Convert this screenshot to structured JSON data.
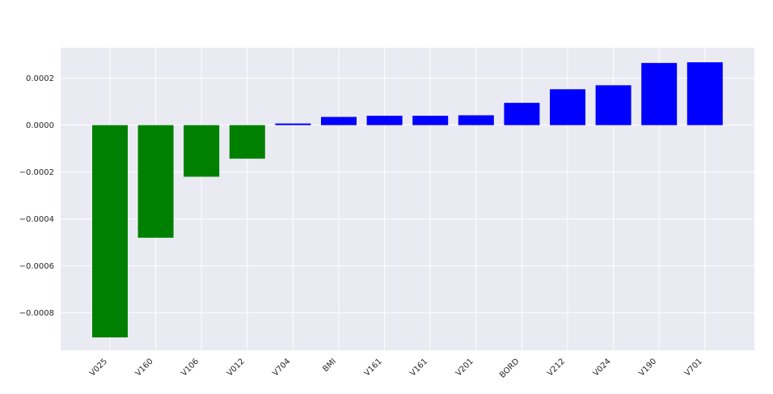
{
  "chart_data": {
    "type": "bar",
    "title": "",
    "xlabel": "",
    "ylabel": "",
    "categories": [
      "V025",
      "V160",
      "V106",
      "V012",
      "V704",
      "BMI",
      "V161",
      "V161",
      "V201",
      "BORD",
      "V212",
      "V024",
      "V190",
      "V701"
    ],
    "values": [
      -0.000905,
      -0.00048,
      -0.00022,
      -0.000143,
      7e-06,
      3.5e-05,
      4e-05,
      4e-05,
      4.2e-05,
      9.5e-05,
      0.000153,
      0.00017,
      0.000265,
      0.000268
    ],
    "colors": {
      "negative": "#008000",
      "positive": "#0000ff"
    },
    "ylim": [
      -0.00096,
      0.00033
    ],
    "yticks": [
      0.0002,
      0.0,
      -0.0002,
      -0.0004,
      -0.0006,
      -0.0008
    ],
    "ytick_labels": [
      "0.0002",
      "0.0000",
      "−0.0002",
      "−0.0004",
      "−0.0006",
      "−0.0008"
    ],
    "grid": true,
    "background": "#eaeaf2"
  }
}
